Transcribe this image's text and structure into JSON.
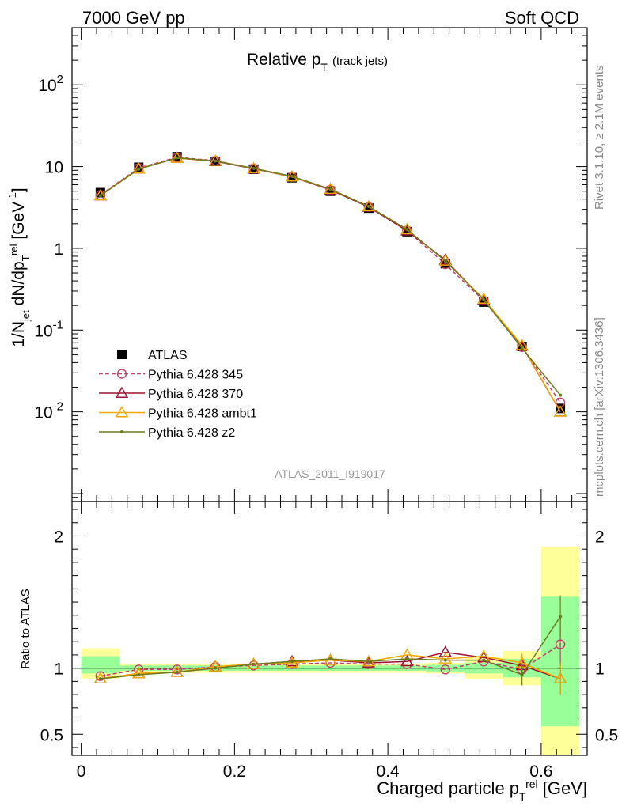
{
  "header": {
    "left": "7000 GeV pp",
    "right": "Soft QCD"
  },
  "side_text": {
    "rivet": "Rivet 3.1.10, ≥ 2.1M events",
    "mcplots": "mcplots.cern.ch [arXiv:1306.3436]"
  },
  "analysis_id": "ATLAS_2011_I919017",
  "chart_data": [
    {
      "type": "line",
      "panel": "main",
      "title_main": "Relative p",
      "title_sub": "T",
      "title_extra": "(track jets)",
      "ylabel": "1/N_jet dN/dp_T^rel [GeV^-1]",
      "yscale": "log",
      "ylim": [
        0.0008,
        500
      ],
      "xlim": [
        -0.012,
        0.66
      ],
      "y_ticks": [
        {
          "label": "10",
          "exp": "-2",
          "value": 0.01
        },
        {
          "label": "10",
          "exp": "-1",
          "value": 0.1
        },
        {
          "label": "1",
          "exp": "",
          "value": 1
        },
        {
          "label": "10",
          "exp": "",
          "value": 10
        },
        {
          "label": "10",
          "exp": "2",
          "value": 100
        }
      ],
      "x": [
        0.025,
        0.075,
        0.125,
        0.175,
        0.225,
        0.275,
        0.325,
        0.375,
        0.425,
        0.475,
        0.525,
        0.575,
        0.625
      ],
      "legend_position": "lower-left",
      "series": [
        {
          "name": "ATLAS",
          "color": "#000000",
          "marker": "square",
          "style": "none",
          "values": [
            4.8,
            9.8,
            13.2,
            11.6,
            9.3,
            7.3,
            5.0,
            3.1,
            1.6,
            0.65,
            0.22,
            0.063,
            0.011
          ]
        },
        {
          "name": "Pythia 6.428 345",
          "color": "#c0406a",
          "marker": "circle-open",
          "style": "dashed",
          "values": [
            4.5,
            9.6,
            13.0,
            11.8,
            9.5,
            7.5,
            5.2,
            3.2,
            1.65,
            0.64,
            0.23,
            0.062,
            0.013
          ]
        },
        {
          "name": "Pythia 6.428 370",
          "color": "#9b1030",
          "marker": "triangle-open",
          "style": "solid",
          "values": [
            4.4,
            9.4,
            12.7,
            11.6,
            9.4,
            7.5,
            5.2,
            3.2,
            1.64,
            0.72,
            0.235,
            0.064,
            0.01
          ]
        },
        {
          "name": "Pythia 6.428 ambt1",
          "color": "#f0a800",
          "marker": "triangle-open",
          "style": "solid",
          "values": [
            4.4,
            9.4,
            12.7,
            11.7,
            9.5,
            7.5,
            5.3,
            3.25,
            1.7,
            0.7,
            0.24,
            0.065,
            0.01
          ]
        },
        {
          "name": "Pythia 6.428 z2",
          "color": "#6b7a1e",
          "marker": "dot",
          "style": "solid",
          "values": [
            4.4,
            9.3,
            12.8,
            11.7,
            9.5,
            7.6,
            5.3,
            3.25,
            1.7,
            0.7,
            0.235,
            0.06,
            0.016
          ]
        }
      ]
    },
    {
      "type": "line",
      "panel": "ratio",
      "ylabel": "Ratio to ATLAS",
      "xlabel": "Charged particle p_T^rel [GeV]",
      "xlim": [
        -0.012,
        0.66
      ],
      "ylim": [
        0.34,
        2.26
      ],
      "x_ticks": [
        {
          "label": "0",
          "value": 0
        },
        {
          "label": "0.2",
          "value": 0.2
        },
        {
          "label": "0.4",
          "value": 0.4
        },
        {
          "label": "0.6",
          "value": 0.6
        }
      ],
      "y_ticks": [
        {
          "label": "0.5",
          "value": 0.5
        },
        {
          "label": "1",
          "value": 1
        },
        {
          "label": "2",
          "value": 2
        }
      ],
      "x": [
        0.025,
        0.075,
        0.125,
        0.175,
        0.225,
        0.275,
        0.325,
        0.375,
        0.425,
        0.475,
        0.525,
        0.575,
        0.625
      ],
      "uncertainty_bands": [
        {
          "xlo": 0.0,
          "xhi": 0.05,
          "green": [
            0.96,
            1.09
          ],
          "yellow": [
            0.92,
            1.15
          ]
        },
        {
          "xlo": 0.05,
          "xhi": 0.1,
          "green": [
            0.98,
            1.02
          ],
          "yellow": [
            0.965,
            1.035
          ]
        },
        {
          "xlo": 0.1,
          "xhi": 0.15,
          "green": [
            0.98,
            1.02
          ],
          "yellow": [
            0.965,
            1.035
          ]
        },
        {
          "xlo": 0.15,
          "xhi": 0.2,
          "green": [
            0.98,
            1.02
          ],
          "yellow": [
            0.965,
            1.035
          ]
        },
        {
          "xlo": 0.2,
          "xhi": 0.25,
          "green": [
            0.98,
            1.02
          ],
          "yellow": [
            0.965,
            1.035
          ]
        },
        {
          "xlo": 0.25,
          "xhi": 0.3,
          "green": [
            0.98,
            1.02
          ],
          "yellow": [
            0.965,
            1.035
          ]
        },
        {
          "xlo": 0.3,
          "xhi": 0.35,
          "green": [
            0.98,
            1.02
          ],
          "yellow": [
            0.965,
            1.035
          ]
        },
        {
          "xlo": 0.35,
          "xhi": 0.4,
          "green": [
            0.98,
            1.02
          ],
          "yellow": [
            0.965,
            1.035
          ]
        },
        {
          "xlo": 0.4,
          "xhi": 0.45,
          "green": [
            0.98,
            1.02
          ],
          "yellow": [
            0.965,
            1.035
          ]
        },
        {
          "xlo": 0.45,
          "xhi": 0.5,
          "green": [
            0.975,
            1.025
          ],
          "yellow": [
            0.96,
            1.04
          ]
        },
        {
          "xlo": 0.5,
          "xhi": 0.55,
          "green": [
            0.96,
            1.04
          ],
          "yellow": [
            0.92,
            1.08
          ]
        },
        {
          "xlo": 0.55,
          "xhi": 0.6,
          "green": [
            0.93,
            1.07
          ],
          "yellow": [
            0.87,
            1.13
          ]
        },
        {
          "xlo": 0.6,
          "xhi": 0.65,
          "green": [
            0.56,
            1.54
          ],
          "yellow": [
            0.34,
            1.92
          ]
        }
      ],
      "series": [
        {
          "name": "Pythia 6.428 345",
          "color": "#c0406a",
          "marker": "circle-open",
          "style": "dashed",
          "values": [
            0.94,
            0.99,
            0.99,
            1.01,
            1.02,
            1.03,
            1.04,
            1.03,
            1.03,
            0.99,
            1.05,
            0.99,
            1.18
          ],
          "errors": [
            0,
            0,
            0,
            0,
            0,
            0,
            0,
            0,
            0,
            0,
            0,
            0.06,
            0.2
          ]
        },
        {
          "name": "Pythia 6.428 370",
          "color": "#9b1030",
          "marker": "triangle-open",
          "style": "solid",
          "values": [
            0.92,
            0.96,
            0.97,
            1.01,
            1.03,
            1.05,
            1.06,
            1.04,
            1.05,
            1.12,
            1.08,
            1.02,
            0.92
          ],
          "errors": [
            0,
            0,
            0,
            0,
            0,
            0,
            0,
            0,
            0,
            0,
            0,
            0.07,
            0.12
          ]
        },
        {
          "name": "Pythia 6.428 ambt1",
          "color": "#f0a800",
          "marker": "triangle-open",
          "style": "solid",
          "values": [
            0.92,
            0.96,
            0.97,
            1.01,
            1.03,
            1.04,
            1.06,
            1.05,
            1.1,
            1.07,
            1.09,
            1.04,
            0.92
          ],
          "errors": [
            0,
            0,
            0,
            0,
            0,
            0,
            0,
            0,
            0,
            0,
            0,
            0.07,
            0.12
          ]
        },
        {
          "name": "Pythia 6.428 z2",
          "color": "#6b7a1e",
          "marker": "dot",
          "style": "solid",
          "values": [
            0.92,
            0.95,
            0.97,
            1.0,
            1.03,
            1.05,
            1.07,
            1.05,
            1.07,
            1.06,
            1.06,
            0.95,
            1.39
          ],
          "errors": [
            0,
            0,
            0,
            0,
            0,
            0,
            0,
            0,
            0,
            0,
            0,
            0.08,
            0.16
          ]
        }
      ]
    }
  ]
}
